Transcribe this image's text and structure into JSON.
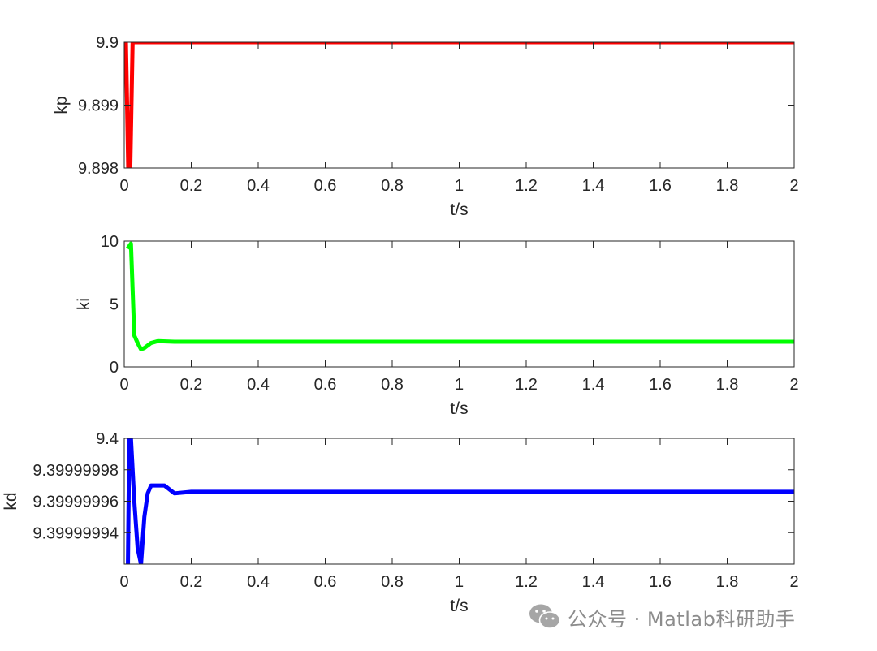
{
  "chart_data": [
    {
      "type": "line",
      "xlabel": "t/s",
      "ylabel": "kp",
      "xlim": [
        0,
        2
      ],
      "ylim": [
        9.898,
        9.9
      ],
      "xticks": [
        "0",
        "0.2",
        "0.4",
        "0.6",
        "0.8",
        "1",
        "1.2",
        "1.4",
        "1.6",
        "1.8",
        "2"
      ],
      "yticks": [
        "9.898",
        "9.899",
        "9.9"
      ],
      "color": "#ff0000",
      "series": [
        {
          "x": [
            0,
            0.005,
            0.012,
            0.018,
            0.025,
            0.04,
            2
          ],
          "y": [
            9.9,
            9.9,
            9.898,
            9.898,
            9.9,
            9.9,
            9.9
          ]
        }
      ]
    },
    {
      "type": "line",
      "xlabel": "t/s",
      "ylabel": "ki",
      "xlim": [
        0,
        2
      ],
      "ylim": [
        0,
        10
      ],
      "xticks": [
        "0",
        "0.2",
        "0.4",
        "0.6",
        "0.8",
        "1",
        "1.2",
        "1.4",
        "1.6",
        "1.8",
        "2"
      ],
      "yticks": [
        "0",
        "5",
        "10"
      ],
      "color": "#00ff00",
      "series": [
        {
          "x": [
            0.01,
            0.02,
            0.03,
            0.04,
            0.05,
            0.06,
            0.08,
            0.1,
            0.15,
            0.2,
            2
          ],
          "y": [
            9.4,
            9.8,
            2.5,
            1.9,
            1.4,
            1.5,
            1.9,
            2.05,
            2.0,
            2.0,
            2.0
          ]
        }
      ]
    },
    {
      "type": "line",
      "xlabel": "t/s",
      "ylabel": "kd",
      "xlim": [
        0,
        2
      ],
      "ylim": [
        9.39999992,
        9.4
      ],
      "xticks": [
        "0",
        "0.2",
        "0.4",
        "0.6",
        "0.8",
        "1",
        "1.2",
        "1.4",
        "1.6",
        "1.8",
        "2"
      ],
      "yticks": [
        "9.39999994",
        "9.39999996",
        "9.39999998",
        "9.4"
      ],
      "color": "#0000ff",
      "series": [
        {
          "x": [
            0.01,
            0.015,
            0.02,
            0.03,
            0.04,
            0.05,
            0.06,
            0.07,
            0.08,
            0.09,
            0.1,
            0.12,
            0.15,
            0.2,
            0.3,
            2
          ],
          "y": [
            9.3999999,
            9.4,
            9.4,
            9.39999996,
            9.39999993,
            9.39999992,
            9.39999995,
            9.399999965,
            9.39999997,
            9.39999997,
            9.39999997,
            9.39999997,
            9.399999965,
            9.399999966,
            9.399999966,
            9.399999966
          ]
        }
      ]
    }
  ],
  "watermark": {
    "text": "公众号 · Matlab科研助手",
    "logo_icon": "wechat-icon"
  }
}
